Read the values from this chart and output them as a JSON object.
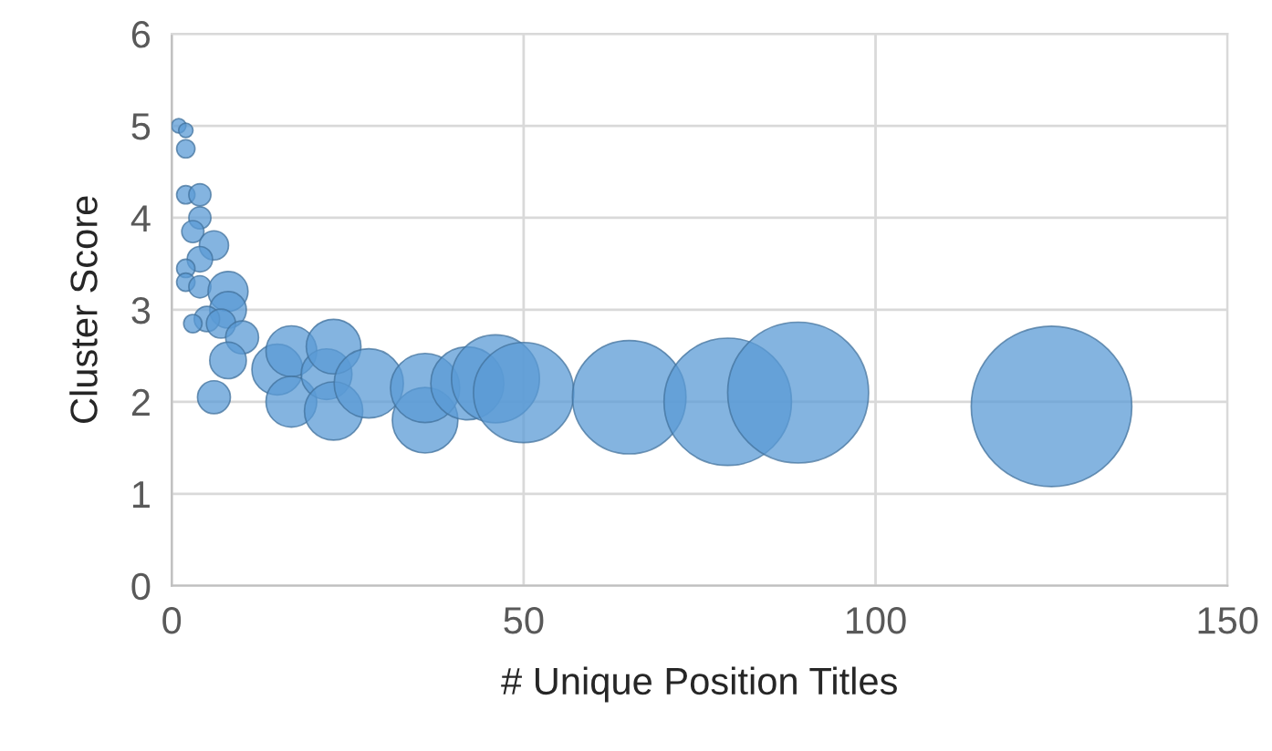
{
  "chart_data": {
    "type": "bubble",
    "xlabel": "# Unique Position Titles",
    "ylabel": "Cluster Score",
    "x": [
      1,
      2,
      2,
      2,
      4,
      4,
      3,
      6,
      4,
      2,
      2,
      4,
      8,
      8,
      5,
      7,
      3,
      10,
      8,
      6,
      15,
      17,
      17,
      22,
      23,
      23,
      28,
      36,
      36,
      42,
      46,
      50,
      65,
      79,
      89,
      125
    ],
    "values": [
      5.0,
      4.95,
      4.75,
      4.25,
      4.25,
      4.0,
      3.85,
      3.7,
      3.55,
      3.45,
      3.3,
      3.25,
      3.2,
      3.0,
      2.9,
      2.85,
      2.85,
      2.7,
      2.45,
      2.05,
      2.35,
      2.55,
      2.0,
      2.3,
      2.6,
      1.9,
      2.2,
      1.8,
      2.15,
      2.2,
      2.25,
      2.1,
      2.05,
      2.0,
      2.1,
      1.95
    ],
    "sizes": [
      0.008,
      0.008,
      0.013,
      0.013,
      0.019,
      0.019,
      0.019,
      0.033,
      0.025,
      0.013,
      0.013,
      0.019,
      0.062,
      0.052,
      0.025,
      0.033,
      0.013,
      0.042,
      0.052,
      0.042,
      0.1,
      0.1,
      0.1,
      0.1,
      0.116,
      0.132,
      0.186,
      0.167,
      0.186,
      0.207,
      0.3,
      0.39,
      0.5,
      0.63,
      0.77,
      1
    ],
    "color": "#5b9bd5",
    "xlim": [
      0,
      150
    ],
    "xticks": [
      0,
      50,
      100,
      150
    ],
    "ylim": [
      0,
      6
    ],
    "yticks": [
      0,
      1,
      2,
      3,
      4,
      5,
      6
    ],
    "grid": true
  }
}
